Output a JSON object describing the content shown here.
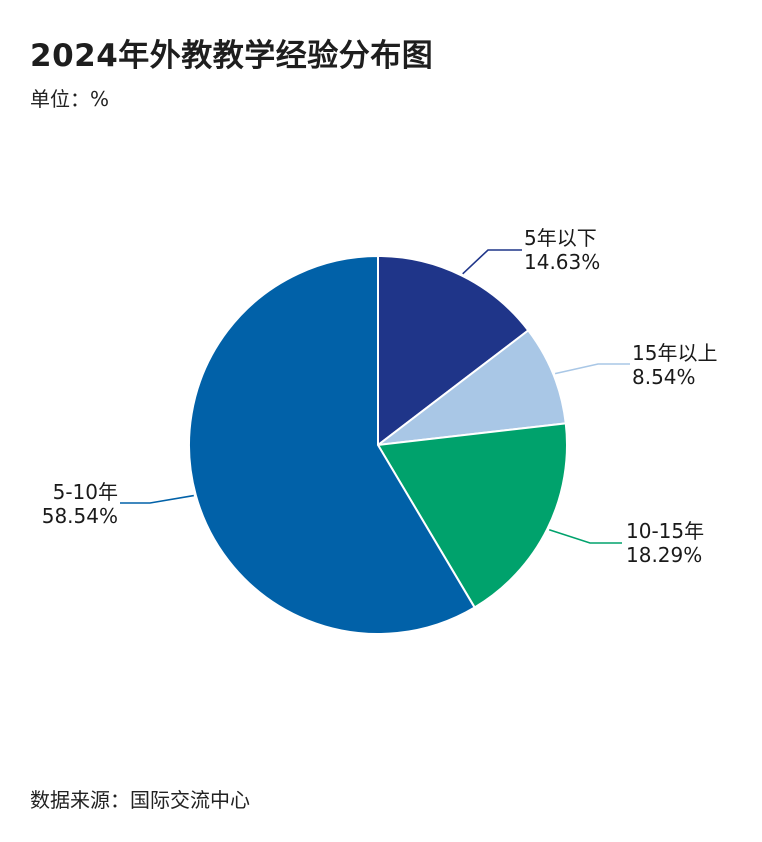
{
  "title": "2024年外教教学经验分布图",
  "unit": "单位：%",
  "source": "数据来源：国际交流中心",
  "chart_data": {
    "type": "pie",
    "title": "2024年外教教学经验分布图",
    "unit": "%",
    "slices": [
      {
        "label": "5年以下",
        "value": 14.63,
        "value_text": "14.63%",
        "color": "#1f3589"
      },
      {
        "label": "15年以上",
        "value": 8.54,
        "value_text": "8.54%",
        "color": "#a9c7e6"
      },
      {
        "label": "10-15年",
        "value": 18.29,
        "value_text": "18.29%",
        "color": "#00a26c"
      },
      {
        "label": "5-10年",
        "value": 58.54,
        "value_text": "58.54%",
        "color": "#0161a8"
      }
    ],
    "start_angle": "12 o'clock",
    "direction": "clockwise",
    "legend": "none"
  }
}
